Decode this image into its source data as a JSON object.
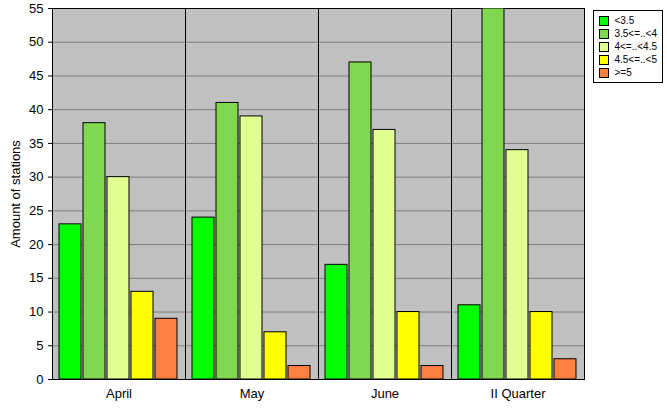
{
  "chart_data": {
    "type": "bar",
    "y_label": "Amount of stations",
    "categories": [
      "April",
      "May",
      "June",
      "II Quarter"
    ],
    "series": [
      {
        "name": "<3.5",
        "color": "#00ff00",
        "values": [
          23,
          24,
          17,
          11
        ]
      },
      {
        "name": "3.5<=..<4",
        "color": "#80d850",
        "values": [
          38,
          41,
          47,
          55
        ]
      },
      {
        "name": "4<=..<4.5",
        "color": "#e0ff90",
        "values": [
          30,
          39,
          37,
          34
        ]
      },
      {
        "name": "4.5<=..<5",
        "color": "#ffff00",
        "values": [
          13,
          7,
          10,
          10
        ]
      },
      {
        "name": ">=5",
        "color": "#ff8040",
        "values": [
          9,
          2,
          2,
          3
        ]
      }
    ],
    "ylim": [
      0,
      55
    ],
    "yticks": [
      0,
      5,
      10,
      15,
      20,
      25,
      30,
      35,
      40,
      45,
      50,
      55
    ],
    "grid": true,
    "legend": "top-right"
  }
}
